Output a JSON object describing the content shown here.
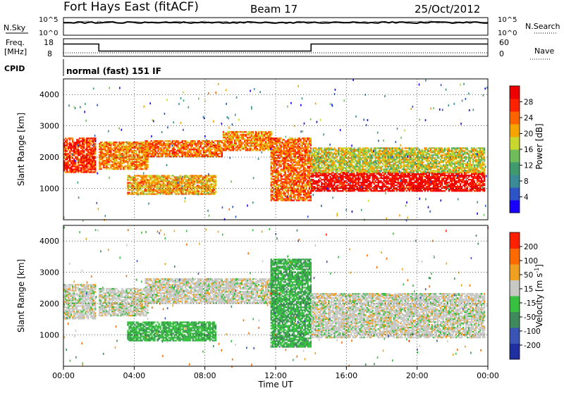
{
  "header": {
    "station": "Fort Hays East (fitACF)",
    "beam": "Beam 17",
    "date": "25/Oct/2012"
  },
  "noise_panel": {
    "left_label": "N.Sky",
    "left_ticks": [
      "10^5",
      "10^0"
    ],
    "right_ticks": [
      "10^5",
      "10^0"
    ],
    "right_label": "N.Search"
  },
  "freq_panel": {
    "left_label_1": "Freq.",
    "left_label_2": "[MHz]",
    "left_ticks": [
      "18",
      "8"
    ],
    "right_ticks": [
      "60",
      "0"
    ],
    "right_label": "Nave"
  },
  "cpid": {
    "label": "CPID",
    "text": "normal (fast) 151 IF"
  },
  "chart_data": [
    {
      "type": "line",
      "panel": "noise",
      "series": [
        {
          "name": "N.Sky",
          "style": "solid"
        },
        {
          "name": "N.Search",
          "style": "dotted"
        }
      ]
    },
    {
      "type": "line",
      "panel": "frequency",
      "x_hours": [
        0,
        2,
        2,
        14,
        14,
        24
      ],
      "series": [
        {
          "name": "Freq.",
          "unit": "MHz",
          "values": [
            15,
            15,
            11,
            11,
            15,
            15
          ],
          "ylim": [
            8,
            18
          ]
        },
        {
          "name": "Nave",
          "values": [
            12,
            12,
            12,
            12,
            12,
            12
          ],
          "ylim": [
            0,
            60
          ]
        }
      ]
    },
    {
      "type": "heatmap",
      "panel": "power",
      "ylabel": "Slant Range [km]",
      "yticks": [
        "4000",
        "3000",
        "2000",
        "1000"
      ],
      "ylim": [
        0,
        4500
      ],
      "colorbar": {
        "label": "Power [dB]",
        "ticks": [
          "28",
          "24",
          "20",
          "16",
          "12",
          "8",
          "4"
        ],
        "range": [
          0,
          30
        ],
        "colors": [
          "#1a00ff",
          "#2d55c7",
          "#3a8a98",
          "#3f9a6e",
          "#6fbd5a",
          "#c9d62e",
          "#f5a400",
          "#ff6400",
          "#ff2200",
          "#ee0000"
        ]
      },
      "bands": [
        {
          "t0": 0.0,
          "t1": 1.8,
          "r0": 1500,
          "r1": 2600,
          "level": 0.85
        },
        {
          "t0": 2.0,
          "t1": 4.8,
          "r0": 1600,
          "r1": 2500,
          "level": 0.7
        },
        {
          "t0": 4.6,
          "t1": 9.0,
          "r0": 2000,
          "r1": 2500,
          "level": 0.75
        },
        {
          "t0": 9.0,
          "t1": 11.8,
          "r0": 2200,
          "r1": 2800,
          "level": 0.7
        },
        {
          "t0": 3.6,
          "t1": 8.6,
          "r0": 800,
          "r1": 1400,
          "level": 0.65
        },
        {
          "t0": 11.7,
          "t1": 14.0,
          "r0": 600,
          "r1": 2600,
          "level": 0.75
        },
        {
          "t0": 14.0,
          "t1": 23.8,
          "r0": 900,
          "r1": 1500,
          "level": 0.95
        },
        {
          "t0": 14.0,
          "t1": 23.8,
          "r0": 1500,
          "r1": 2300,
          "level": 0.55
        }
      ]
    },
    {
      "type": "heatmap",
      "panel": "velocity",
      "ylabel": "Slant Range [km]",
      "yticks": [
        "4000",
        "3000",
        "2000",
        "1000"
      ],
      "ylim": [
        0,
        4500
      ],
      "colorbar": {
        "label": "Velocity [m s^-1]",
        "ticks": [
          "200",
          "100",
          "50",
          "15",
          "-15",
          "-50",
          "-100",
          "-200"
        ],
        "range": [
          -250,
          250
        ],
        "colors": [
          "#2030a0",
          "#3a55b5",
          "#3f8a5a",
          "#38c040",
          "#c8c8c4",
          "#f0a020",
          "#ff6a00",
          "#ff2000"
        ]
      },
      "bands": [
        {
          "t0": 0.0,
          "t1": 1.8,
          "r0": 1500,
          "r1": 2600,
          "v": 0
        },
        {
          "t0": 2.0,
          "t1": 4.8,
          "r0": 1600,
          "r1": 2500,
          "v": 0
        },
        {
          "t0": 4.6,
          "t1": 11.8,
          "r0": 2000,
          "r1": 2800,
          "v": 0
        },
        {
          "t0": 3.6,
          "t1": 8.6,
          "r0": 800,
          "r1": 1400,
          "v": 40
        },
        {
          "t0": 11.7,
          "t1": 14.0,
          "r0": 600,
          "r1": 3400,
          "v": 45
        },
        {
          "t0": 14.0,
          "t1": 23.8,
          "r0": 900,
          "r1": 2300,
          "v": 0
        }
      ]
    }
  ],
  "time_axis": {
    "ticks": [
      "00:00",
      "04:00",
      "08:00",
      "12:00",
      "16:00",
      "20:00",
      "00:00"
    ],
    "label": "Time UT"
  }
}
